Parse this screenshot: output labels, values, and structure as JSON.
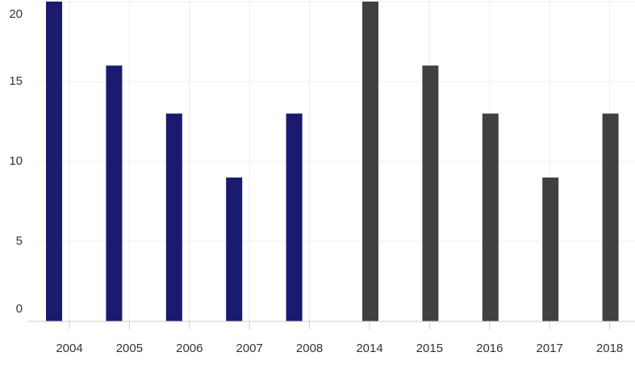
{
  "chart_data": {
    "type": "bar",
    "categories": [
      "2004",
      "2005",
      "2006",
      "2007",
      "2008",
      "2014",
      "2015",
      "2016",
      "2017",
      "2018"
    ],
    "series": [
      {
        "color": "#1a1a6e",
        "values": [
          20,
          16,
          13,
          9,
          13,
          null,
          null,
          null,
          null,
          null
        ]
      },
      {
        "color": "#404040",
        "values": [
          null,
          null,
          null,
          null,
          null,
          20,
          16,
          13,
          9,
          13
        ]
      }
    ],
    "ylim": [
      0,
      20
    ],
    "yticks": [
      0,
      5,
      10,
      15,
      20
    ],
    "grid": true
  }
}
